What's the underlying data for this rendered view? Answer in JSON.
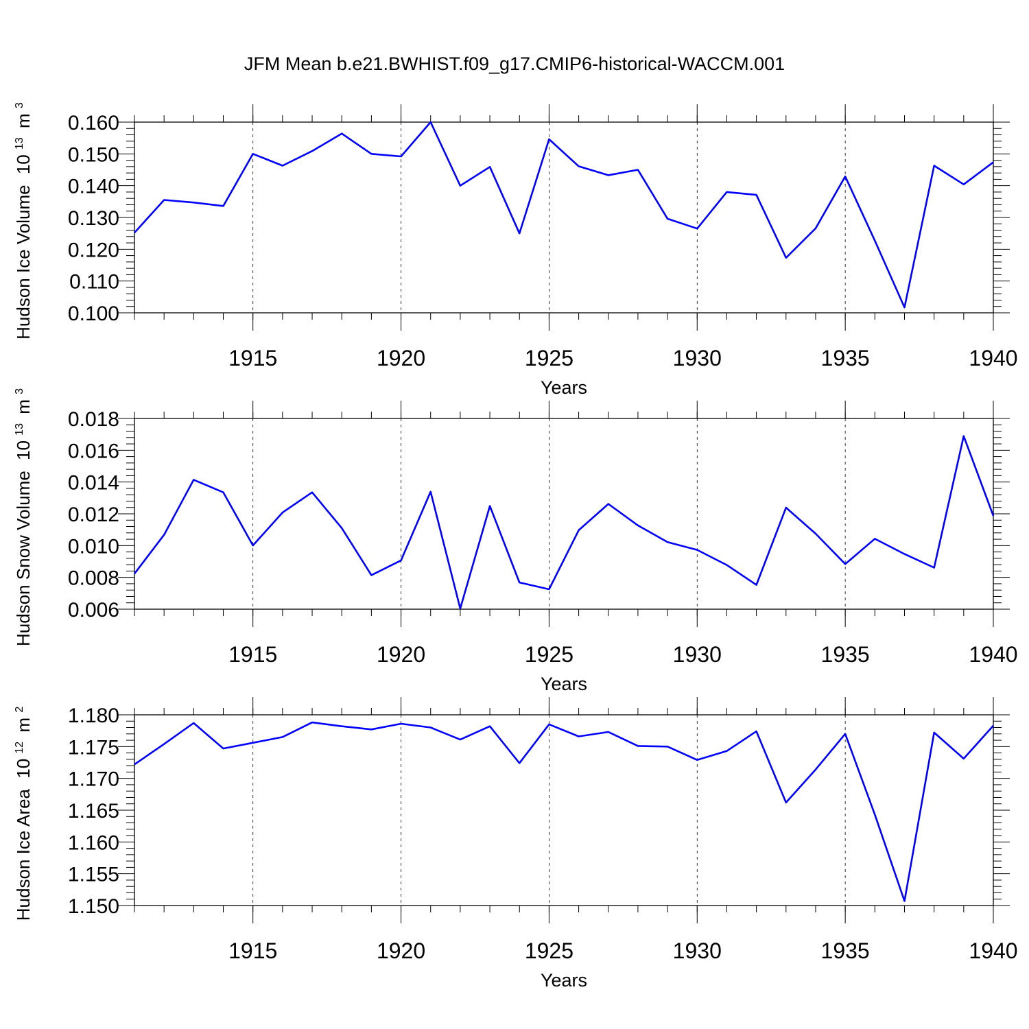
{
  "title": "JFM Mean b.e21.BWHIST.f09_g17.CMIP6-historical-WACCM.001",
  "line_color": "#0000ff",
  "chart_data": [
    {
      "type": "line",
      "ylabel": "Hudson Ice Volume",
      "ylabel_unit_base": "10",
      "ylabel_unit_exp": "13",
      "ylabel_unit_sym": "m",
      "ylabel_unit_pow": "3",
      "xlabel": "Years",
      "xlim": [
        1911,
        1940
      ],
      "ylim": [
        0.1,
        0.16
      ],
      "yticks": [
        "0.100",
        "0.110",
        "0.120",
        "0.130",
        "0.140",
        "0.150",
        "0.160"
      ],
      "xticks": [
        "1915",
        "1920",
        "1925",
        "1930",
        "1935",
        "1940"
      ],
      "x": [
        1911,
        1912,
        1913,
        1914,
        1915,
        1916,
        1917,
        1918,
        1919,
        1920,
        1921,
        1922,
        1923,
        1924,
        1925,
        1926,
        1927,
        1928,
        1929,
        1930,
        1931,
        1932,
        1933,
        1934,
        1935,
        1936,
        1937,
        1938,
        1939,
        1940
      ],
      "y": [
        0.1252,
        0.1355,
        0.1347,
        0.1336,
        0.15,
        0.1463,
        0.1509,
        0.1564,
        0.15,
        0.1492,
        0.16,
        0.14,
        0.1459,
        0.125,
        0.1546,
        0.1461,
        0.1433,
        0.145,
        0.1296,
        0.1265,
        0.138,
        0.1371,
        0.1173,
        0.1266,
        0.1429,
        0.1227,
        0.1017,
        0.1463,
        0.1404,
        0.1474
      ]
    },
    {
      "type": "line",
      "ylabel": "Hudson Snow Volume",
      "ylabel_unit_base": "10",
      "ylabel_unit_exp": "13",
      "ylabel_unit_sym": "m",
      "ylabel_unit_pow": "3",
      "xlabel": "Years",
      "xlim": [
        1911,
        1940
      ],
      "ylim": [
        0.006,
        0.018
      ],
      "yticks": [
        "0.006",
        "0.008",
        "0.010",
        "0.012",
        "0.014",
        "0.016",
        "0.018"
      ],
      "xticks": [
        "1915",
        "1920",
        "1925",
        "1930",
        "1935",
        "1940"
      ],
      "x": [
        1911,
        1912,
        1913,
        1914,
        1915,
        1916,
        1917,
        1918,
        1919,
        1920,
        1921,
        1922,
        1923,
        1924,
        1925,
        1926,
        1927,
        1928,
        1929,
        1930,
        1931,
        1932,
        1933,
        1934,
        1935,
        1936,
        1937,
        1938,
        1939,
        1940
      ],
      "y": [
        0.00823,
        0.01068,
        0.01414,
        0.01335,
        0.01001,
        0.01208,
        0.01335,
        0.0111,
        0.00814,
        0.00907,
        0.01339,
        0.00604,
        0.01249,
        0.00768,
        0.00725,
        0.01097,
        0.01262,
        0.01127,
        0.01022,
        0.00973,
        0.00878,
        0.00753,
        0.01239,
        0.01075,
        0.00884,
        0.01043,
        0.00947,
        0.00861,
        0.01689,
        0.01187
      ]
    },
    {
      "type": "line",
      "ylabel": "Hudson Ice Area",
      "ylabel_unit_base": "10",
      "ylabel_unit_exp": "12",
      "ylabel_unit_sym": "m",
      "ylabel_unit_pow": "2",
      "xlabel": "Years",
      "xlim": [
        1911,
        1940
      ],
      "ylim": [
        1.15,
        1.18
      ],
      "yticks": [
        "1.150",
        "1.155",
        "1.160",
        "1.165",
        "1.170",
        "1.175",
        "1.180"
      ],
      "xticks": [
        "1915",
        "1920",
        "1925",
        "1930",
        "1935",
        "1940"
      ],
      "x": [
        1911,
        1912,
        1913,
        1914,
        1915,
        1916,
        1917,
        1918,
        1919,
        1920,
        1921,
        1922,
        1923,
        1924,
        1925,
        1926,
        1927,
        1928,
        1929,
        1930,
        1931,
        1932,
        1933,
        1934,
        1935,
        1936,
        1937,
        1938,
        1939,
        1940
      ],
      "y": [
        1.1722,
        1.1754,
        1.1787,
        1.1747,
        1.1756,
        1.1765,
        1.1788,
        1.1782,
        1.1777,
        1.1786,
        1.178,
        1.1761,
        1.1782,
        1.1724,
        1.1785,
        1.1766,
        1.1773,
        1.1751,
        1.175,
        1.1729,
        1.1743,
        1.1774,
        1.1662,
        1.1714,
        1.177,
        1.1643,
        1.1507,
        1.1772,
        1.1731,
        1.1783
      ]
    }
  ]
}
